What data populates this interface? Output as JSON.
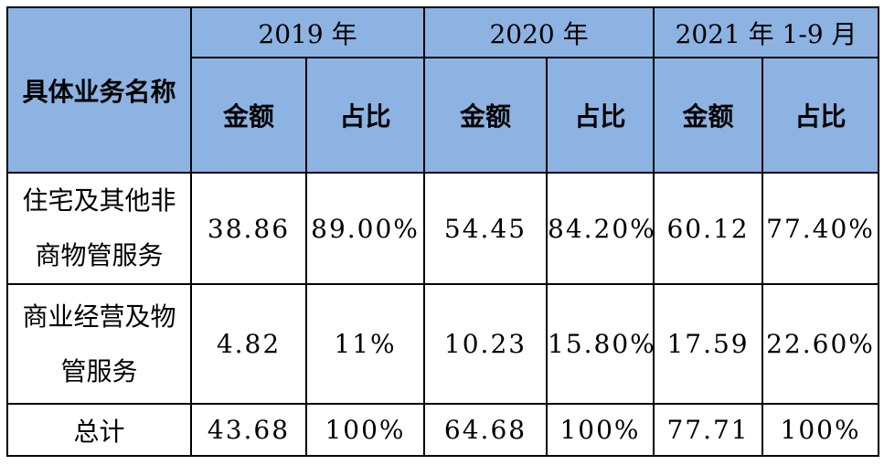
{
  "table": {
    "corner_header": "具体业务名称",
    "year_groups": [
      {
        "label": "2019 年",
        "sub": [
          "金额",
          "占比"
        ]
      },
      {
        "label": "2020 年",
        "sub": [
          "金额",
          "占比"
        ]
      },
      {
        "label": "2021 年 1-9 月",
        "sub": [
          "金额",
          "占比"
        ]
      }
    ],
    "rows": [
      {
        "name_line1": "住宅及其他非",
        "name_line2": "商物管服务",
        "cells": [
          "38.86",
          "89.00%",
          "54.45",
          "84.20%",
          "60.12",
          "77.40%"
        ]
      },
      {
        "name_line1": "商业经营及物",
        "name_line2": "管服务",
        "cells": [
          "4.82",
          "11%",
          "10.23",
          "15.80%",
          "17.59",
          "22.60%"
        ]
      },
      {
        "name_line1": "总计",
        "cells": [
          "43.68",
          "100%",
          "64.68",
          "100%",
          "77.71",
          "100%"
        ]
      }
    ],
    "colors": {
      "header_bg": "#8db3e2",
      "border": "#000000",
      "text": "#000000"
    }
  }
}
